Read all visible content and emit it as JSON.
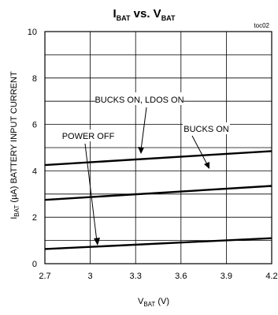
{
  "chart_data": {
    "type": "line",
    "title": {
      "main": "I",
      "sub1": "BAT",
      "mid": " vs. V",
      "sub2": "BAT"
    },
    "code": "toc02",
    "xlabel": {
      "main": "V",
      "sub": "BAT",
      "unit": " (V)"
    },
    "ylabel": {
      "main": "I",
      "sub": "BAT",
      "rest": " (µA) BATTERY INPUT CURRENT"
    },
    "xlim": [
      2.7,
      4.2
    ],
    "ylim": [
      0,
      10
    ],
    "xticks": [
      "2.7",
      "3",
      "3.3",
      "3.6",
      "3.9",
      "4.2"
    ],
    "yticks": [
      "0",
      "2",
      "4",
      "6",
      "8",
      "10"
    ],
    "grid": true,
    "series": [
      {
        "name": "BUCKS ON, LDOS ON",
        "x": [
          2.7,
          4.2
        ],
        "y": [
          4.25,
          4.85
        ]
      },
      {
        "name": "BUCKS ON",
        "x": [
          2.7,
          4.2
        ],
        "y": [
          2.75,
          3.35
        ]
      },
      {
        "name": "POWER OFF",
        "x": [
          2.7,
          4.2
        ],
        "y": [
          0.63,
          1.1
        ]
      }
    ]
  }
}
